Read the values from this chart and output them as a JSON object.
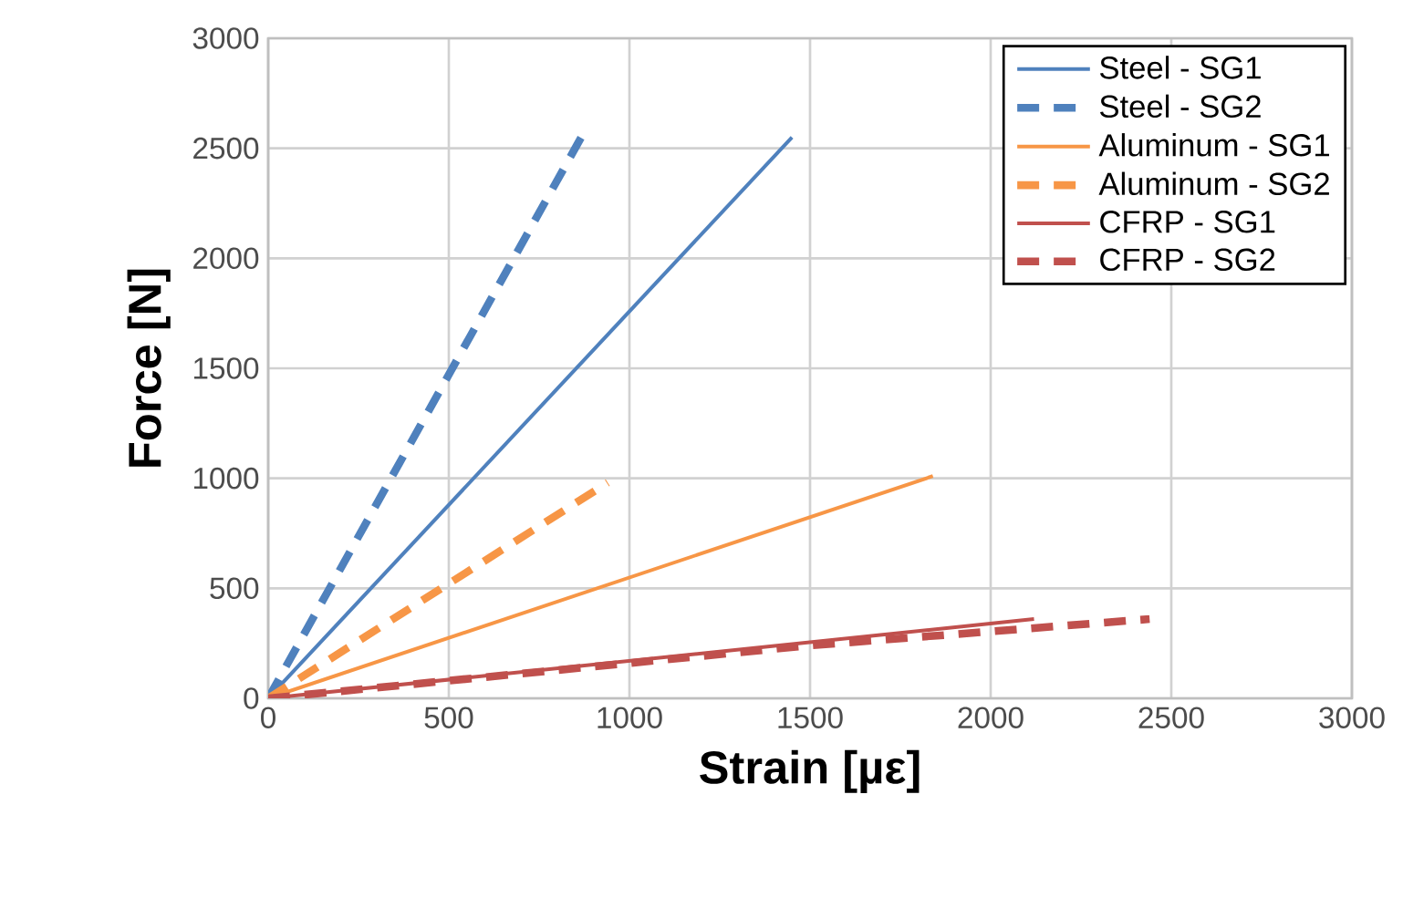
{
  "chart_data": {
    "type": "line",
    "xlabel": "Strain [µε]",
    "ylabel": "Force [N]",
    "xlim": [
      0,
      3000
    ],
    "ylim": [
      0,
      3000
    ],
    "xticks": [
      0,
      500,
      1000,
      1500,
      2000,
      2500,
      3000
    ],
    "yticks": [
      0,
      500,
      1000,
      1500,
      2000,
      2500,
      3000
    ],
    "grid": true,
    "legend": "top right",
    "marker": "none",
    "series": [
      {
        "name": "Steel - SG1",
        "color": "#4f81bd",
        "line_style": "solid",
        "x": [
          0,
          1450
        ],
        "values": [
          0,
          2550
        ]
      },
      {
        "name": "Steel - SG2",
        "color": "#4f81bd",
        "line_style": "dashed",
        "x": [
          0,
          870
        ],
        "values": [
          0,
          2560
        ]
      },
      {
        "name": "Aluminum - SG1",
        "color": "#f79646",
        "line_style": "solid",
        "x": [
          0,
          1840
        ],
        "values": [
          0,
          1010
        ]
      },
      {
        "name": "Aluminum - SG2",
        "color": "#f79646",
        "line_style": "dashed",
        "x": [
          0,
          940
        ],
        "values": [
          0,
          980
        ]
      },
      {
        "name": "CFRP - SG1",
        "color": "#c0504d",
        "line_style": "solid",
        "x": [
          0,
          2120
        ],
        "values": [
          0,
          360
        ]
      },
      {
        "name": "CFRP - SG2",
        "color": "#c0504d",
        "line_style": "dashed",
        "x": [
          0,
          1500,
          2440
        ],
        "values": [
          0,
          240,
          360
        ]
      }
    ]
  }
}
